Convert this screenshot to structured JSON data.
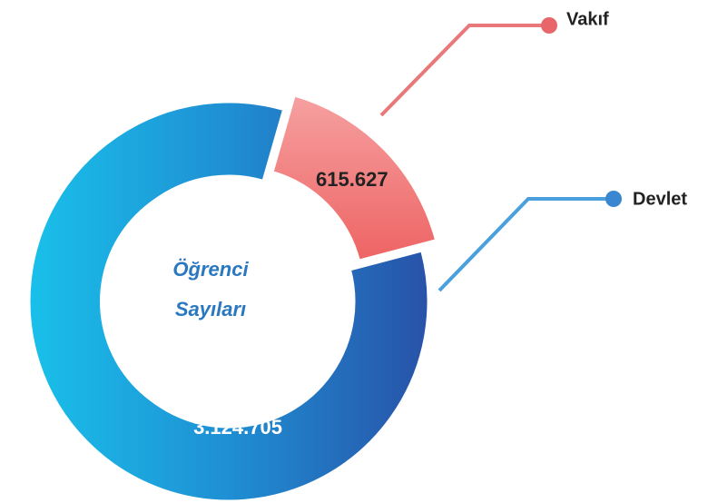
{
  "chart_data": {
    "type": "donut",
    "center_label": [
      "Öğrenci",
      "Sayıları"
    ],
    "categories": [
      "Vakıf",
      "Devlet"
    ],
    "values": [
      615627,
      3124705
    ],
    "value_labels": [
      "615.627",
      "3.124.705"
    ],
    "colors": [
      "#f07070",
      "#2a7fc9"
    ]
  }
}
